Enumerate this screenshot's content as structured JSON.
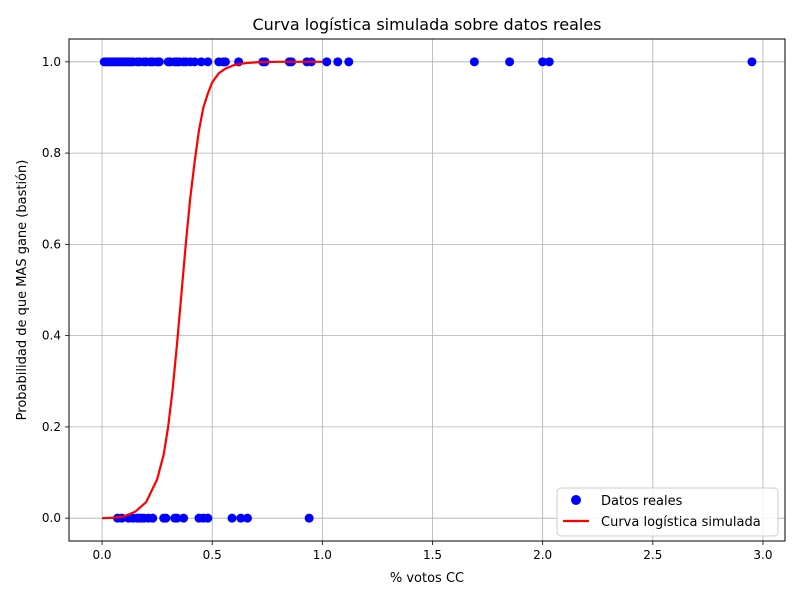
{
  "chart_data": {
    "type": "scatter",
    "title": "Curva logística simulada sobre datos reales",
    "xlabel": "% votos CC",
    "ylabel": "Probabilidad de que MAS gane (bastión)",
    "xlim": [
      -0.15,
      3.1
    ],
    "ylim": [
      -0.05,
      1.05
    ],
    "xticks": [
      0.0,
      0.5,
      1.0,
      1.5,
      2.0,
      2.5,
      3.0
    ],
    "xtick_labels": [
      "0.0",
      "0.5",
      "1.0",
      "1.5",
      "2.0",
      "2.5",
      "3.0"
    ],
    "yticks": [
      0.0,
      0.2,
      0.4,
      0.6,
      0.8,
      1.0
    ],
    "ytick_labels": [
      "0.0",
      "0.2",
      "0.4",
      "0.6",
      "0.8",
      "1.0"
    ],
    "grid": true,
    "legend_position": "lower-right",
    "colors": {
      "points": "#0000ff",
      "curve": "#ff0000",
      "grid": "#b0b0b0"
    },
    "series": [
      {
        "name": "Datos reales",
        "type": "scatter",
        "x": [
          0.01,
          0.02,
          0.03,
          0.04,
          0.05,
          0.06,
          0.07,
          0.08,
          0.09,
          0.1,
          0.11,
          0.12,
          0.13,
          0.14,
          0.16,
          0.17,
          0.19,
          0.2,
          0.22,
          0.23,
          0.25,
          0.26,
          0.3,
          0.31,
          0.33,
          0.34,
          0.35,
          0.37,
          0.38,
          0.4,
          0.42,
          0.45,
          0.48,
          0.53,
          0.55,
          0.56,
          0.62,
          0.73,
          0.74,
          0.85,
          0.86,
          0.93,
          0.95,
          1.02,
          1.07,
          1.12,
          1.69,
          1.85,
          2.0,
          2.03,
          2.95,
          0.07,
          0.09,
          0.12,
          0.14,
          0.16,
          0.17,
          0.18,
          0.19,
          0.21,
          0.23,
          0.28,
          0.29,
          0.33,
          0.34,
          0.37,
          0.44,
          0.46,
          0.48,
          0.59,
          0.63,
          0.66,
          0.94
        ],
        "y": [
          1,
          1,
          1,
          1,
          1,
          1,
          1,
          1,
          1,
          1,
          1,
          1,
          1,
          1,
          1,
          1,
          1,
          1,
          1,
          1,
          1,
          1,
          1,
          1,
          1,
          1,
          1,
          1,
          1,
          1,
          1,
          1,
          1,
          1,
          1,
          1,
          1,
          1,
          1,
          1,
          1,
          1,
          1,
          1,
          1,
          1,
          1,
          1,
          1,
          1,
          1,
          0,
          0,
          0,
          0,
          0,
          0,
          0,
          0,
          0,
          0,
          0,
          0,
          0,
          0,
          0,
          0,
          0,
          0,
          0,
          0,
          0,
          0
        ]
      },
      {
        "name": "Curva logística simulada",
        "type": "line",
        "x": [
          0.0,
          0.05,
          0.1,
          0.15,
          0.2,
          0.25,
          0.28,
          0.3,
          0.32,
          0.34,
          0.36,
          0.38,
          0.4,
          0.42,
          0.44,
          0.46,
          0.48,
          0.5,
          0.53,
          0.56,
          0.6,
          0.65,
          0.7,
          0.8,
          0.9,
          1.0
        ],
        "y": [
          0.0,
          0.001,
          0.004,
          0.014,
          0.035,
          0.085,
          0.14,
          0.2,
          0.28,
          0.38,
          0.49,
          0.6,
          0.7,
          0.78,
          0.85,
          0.9,
          0.93,
          0.955,
          0.975,
          0.985,
          0.993,
          0.997,
          0.999,
          1.0,
          1.0,
          1.0
        ]
      }
    ]
  }
}
